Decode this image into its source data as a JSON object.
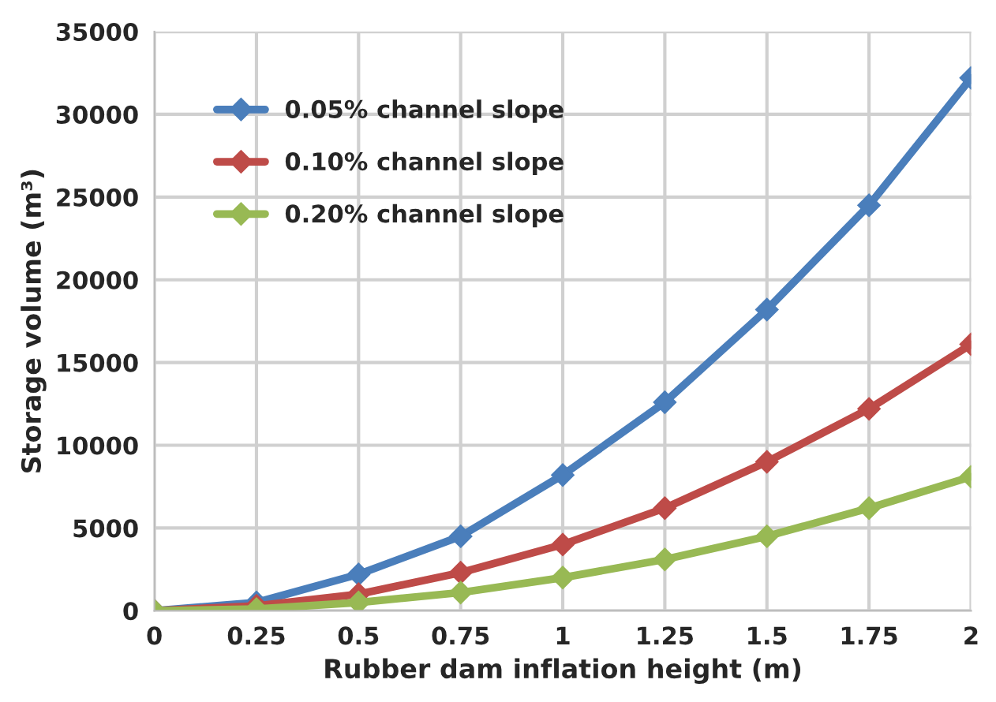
{
  "chart_data": {
    "type": "line",
    "xlabel": "Rubber dam inflation height (m)",
    "ylabel": "Storage volume (m³)",
    "x": [
      0,
      0.25,
      0.5,
      0.75,
      1,
      1.25,
      1.5,
      1.75,
      2
    ],
    "series": [
      {
        "name": "0.05% channel slope",
        "color": "#4a7ebb",
        "values": [
          0,
          500,
          2200,
          4500,
          8200,
          12600,
          18200,
          24500,
          32200
        ]
      },
      {
        "name": "0.10% channel slope",
        "color": "#be4b48",
        "values": [
          0,
          300,
          1000,
          2300,
          4000,
          6200,
          9000,
          12200,
          16100
        ]
      },
      {
        "name": "0.20% channel slope",
        "color": "#98b954",
        "values": [
          0,
          100,
          500,
          1100,
          2000,
          3100,
          4500,
          6200,
          8100
        ]
      }
    ],
    "xlim": [
      0,
      2
    ],
    "xticks": [
      0,
      0.25,
      0.5,
      0.75,
      1,
      1.25,
      1.5,
      1.75,
      2
    ],
    "ylim": [
      0,
      35000
    ],
    "yticks": [
      0,
      5000,
      10000,
      15000,
      20000,
      25000,
      30000,
      35000
    ],
    "grid": true,
    "legend": "top left",
    "marker": "diamond",
    "line_style": "solid"
  }
}
